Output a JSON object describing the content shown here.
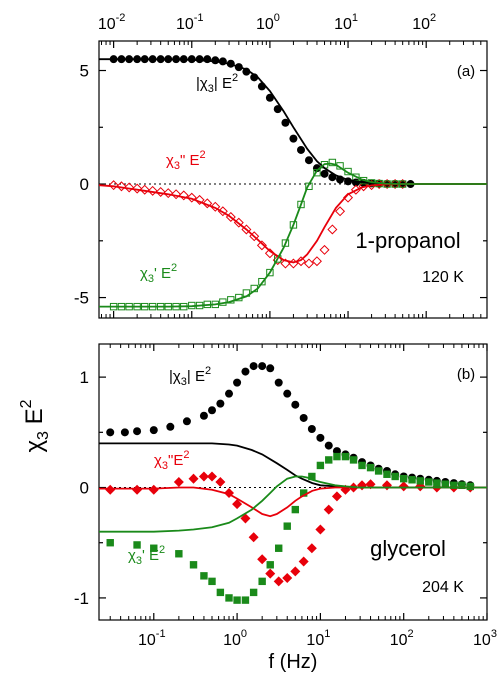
{
  "figure": {
    "shared_ylabel_base": "χ",
    "shared_ylabel_sub": "3",
    "shared_ylabel_tail": " E",
    "shared_ylabel_sup": "2",
    "colors": {
      "black": "#000000",
      "red": "#e8000b",
      "green": "#1a8a1a"
    }
  },
  "chart_data": [
    {
      "panel": "(a)",
      "type": "scatter",
      "xscale": "log",
      "xlim": [
        0.0065,
        600
      ],
      "ylim": [
        -5.9,
        6.3
      ],
      "x_ticks": [
        "10",
        "10",
        "10",
        "10",
        "10"
      ],
      "x_tick_exponents": [
        "-2",
        "-1",
        "0",
        "1",
        "2"
      ],
      "x_tick_values": [
        0.01,
        0.1,
        1,
        10,
        100
      ],
      "y_ticks": [
        "-5",
        "0",
        "5"
      ],
      "y_tick_values": [
        -5,
        0,
        5
      ],
      "zero_line": "dotted",
      "tick_axis_position": "top",
      "sample": "1-propanol",
      "temperature": "120 K",
      "labels": {
        "abs": {
          "pre": "|χ",
          "sub": "3",
          "mid": "| E",
          "sup": "2"
        },
        "imag": {
          "pre": "χ",
          "sub": "3",
          "mid": "\" E",
          "sup": "2"
        },
        "real": {
          "pre": "χ",
          "sub": "3",
          "mid": "' E",
          "sup": "2"
        }
      },
      "series": [
        {
          "label": "|χ3| E²",
          "color": "black",
          "marker": "circle-filled",
          "x": [
            0.01,
            0.0126,
            0.0158,
            0.02,
            0.025,
            0.0316,
            0.04,
            0.05,
            0.063,
            0.079,
            0.1,
            0.126,
            0.158,
            0.2,
            0.25,
            0.316,
            0.4,
            0.5,
            0.63,
            0.79,
            1.0,
            1.26,
            1.58,
            2.0,
            2.5,
            3.16,
            4.0,
            5.0,
            6.3,
            7.9,
            10,
            12.6,
            15.8,
            20,
            25,
            31.6,
            40,
            50,
            63
          ],
          "y": [
            5.5,
            5.5,
            5.5,
            5.5,
            5.5,
            5.5,
            5.5,
            5.5,
            5.5,
            5.5,
            5.5,
            5.5,
            5.5,
            5.45,
            5.4,
            5.3,
            5.15,
            4.95,
            4.7,
            4.3,
            3.8,
            3.3,
            2.7,
            2.0,
            1.5,
            1.05,
            0.7,
            0.45,
            0.3,
            0.2,
            0.12,
            0.07,
            0.05,
            0.03,
            0.02,
            0.01,
            0.01,
            0.0,
            0.0
          ]
        },
        {
          "label": "χ3\" E²",
          "color": "red",
          "marker": "diamond-open",
          "x": [
            0.01,
            0.0126,
            0.0158,
            0.02,
            0.025,
            0.0316,
            0.04,
            0.05,
            0.063,
            0.079,
            0.1,
            0.126,
            0.158,
            0.2,
            0.25,
            0.316,
            0.4,
            0.5,
            0.63,
            0.79,
            1.0,
            1.26,
            1.58,
            2.0,
            2.5,
            3.16,
            4.0,
            5.0,
            6.3,
            7.9,
            10,
            12.6,
            15.8,
            20,
            25,
            31.6,
            40,
            50
          ],
          "y": [
            -0.05,
            -0.1,
            -0.15,
            -0.2,
            -0.25,
            -0.3,
            -0.35,
            -0.4,
            -0.45,
            -0.5,
            -0.6,
            -0.7,
            -0.85,
            -1.0,
            -1.2,
            -1.45,
            -1.7,
            -2.0,
            -2.3,
            -2.7,
            -3.05,
            -3.35,
            -3.5,
            -3.5,
            -3.4,
            -3.5,
            -3.4,
            -2.9,
            -2.0,
            -1.2,
            -0.6,
            -0.25,
            -0.1,
            -0.05,
            0.0,
            0.0,
            0.0,
            0.0
          ]
        },
        {
          "label": "χ3' E²",
          "color": "green",
          "marker": "square-open",
          "x": [
            0.01,
            0.0126,
            0.0158,
            0.02,
            0.025,
            0.0316,
            0.04,
            0.05,
            0.063,
            0.079,
            0.1,
            0.126,
            0.158,
            0.2,
            0.25,
            0.316,
            0.4,
            0.5,
            0.63,
            0.79,
            1.0,
            1.26,
            1.58,
            2.0,
            2.5,
            3.16,
            4.0,
            5.0,
            6.3,
            7.9,
            10,
            12.6,
            15.8,
            20,
            25,
            31.6,
            40,
            50
          ],
          "y": [
            -5.4,
            -5.4,
            -5.4,
            -5.4,
            -5.4,
            -5.4,
            -5.4,
            -5.4,
            -5.4,
            -5.4,
            -5.35,
            -5.35,
            -5.3,
            -5.3,
            -5.2,
            -5.1,
            -5.0,
            -4.8,
            -4.6,
            -4.3,
            -3.9,
            -3.3,
            -2.6,
            -1.8,
            -0.9,
            -0.1,
            0.5,
            0.85,
            0.95,
            0.8,
            0.55,
            0.3,
            0.15,
            0.05,
            0.02,
            0.0,
            0.0,
            0.0
          ]
        },
        {
          "label": "|χ3| E² fit",
          "color": "black",
          "style": "line",
          "x": [
            0.0065,
            0.01,
            0.02,
            0.05,
            0.1,
            0.2,
            0.3,
            0.5,
            0.7,
            1.0,
            1.5,
            2.0,
            3.0,
            4.0,
            5.0,
            7.0,
            10,
            15,
            20,
            30,
            50,
            100,
            600
          ],
          "y": [
            5.5,
            5.5,
            5.5,
            5.49,
            5.47,
            5.4,
            5.3,
            5.05,
            4.7,
            4.1,
            3.2,
            2.5,
            1.55,
            1.0,
            0.7,
            0.38,
            0.18,
            0.08,
            0.04,
            0.02,
            0.0,
            0.0,
            0.0
          ]
        },
        {
          "label": "χ3\" E² fit",
          "color": "red",
          "style": "line",
          "x": [
            0.0065,
            0.01,
            0.02,
            0.05,
            0.1,
            0.2,
            0.3,
            0.5,
            0.7,
            1.0,
            1.5,
            2.0,
            2.5,
            3.0,
            4.0,
            5.0,
            7.0,
            10,
            15,
            20,
            30,
            50,
            100,
            600
          ],
          "y": [
            -0.05,
            -0.1,
            -0.25,
            -0.45,
            -0.65,
            -1.05,
            -1.4,
            -2.0,
            -2.45,
            -2.95,
            -3.35,
            -3.45,
            -3.35,
            -3.1,
            -2.5,
            -1.9,
            -1.05,
            -0.45,
            -0.15,
            -0.06,
            -0.02,
            0.0,
            0.0,
            0.0
          ]
        },
        {
          "label": "χ3' E² fit",
          "color": "green",
          "style": "line",
          "x": [
            0.0065,
            0.01,
            0.05,
            0.1,
            0.2,
            0.3,
            0.5,
            0.7,
            1.0,
            1.5,
            2.0,
            2.5,
            3.0,
            4.0,
            5.0,
            6.0,
            7.0,
            8.0,
            10,
            15,
            20,
            30,
            50,
            100,
            600
          ],
          "y": [
            -5.4,
            -5.4,
            -5.4,
            -5.38,
            -5.3,
            -5.2,
            -4.95,
            -4.6,
            -3.9,
            -2.8,
            -1.8,
            -0.9,
            -0.15,
            0.6,
            0.88,
            0.9,
            0.85,
            0.72,
            0.5,
            0.2,
            0.08,
            0.02,
            0.0,
            0.0,
            0.0
          ]
        }
      ]
    },
    {
      "panel": "(b)",
      "type": "scatter",
      "xscale": "log",
      "xlim": [
        0.022,
        1000
      ],
      "ylim": [
        -1.2,
        1.3
      ],
      "xlabel": "f (Hz)",
      "x_ticks": [
        "10",
        "10",
        "10",
        "10",
        "10"
      ],
      "x_tick_exponents": [
        "-1",
        "0",
        "1",
        "2",
        "3"
      ],
      "x_tick_values": [
        0.1,
        1,
        10,
        100,
        1000
      ],
      "y_ticks": [
        "-1",
        "0",
        "1"
      ],
      "y_tick_values": [
        -1,
        0,
        1
      ],
      "zero_line": "dotted",
      "sample": "glycerol",
      "temperature": "204 K",
      "labels": {
        "abs": {
          "pre": "|χ",
          "sub": "3",
          "mid": "| E",
          "sup": "2"
        },
        "imag": {
          "pre": "χ",
          "sub": "3",
          "mid": "\"E",
          "sup": "2"
        },
        "real": {
          "pre": "χ",
          "sub": "3",
          "mid": "' E",
          "sup": "2"
        }
      },
      "series": [
        {
          "label": "|χ3| E²",
          "color": "black",
          "marker": "circle-filled",
          "x": [
            0.03,
            0.045,
            0.063,
            0.1,
            0.158,
            0.25,
            0.4,
            0.5,
            0.63,
            0.8,
            1.0,
            1.26,
            1.58,
            2.0,
            2.5,
            3.16,
            4.0,
            5.0,
            6.3,
            7.9,
            10,
            12.6,
            15.8,
            20,
            25,
            31.6,
            40,
            50,
            63,
            79,
            100,
            126,
            158,
            200,
            250,
            316,
            400,
            500,
            630
          ],
          "y": [
            0.5,
            0.5,
            0.51,
            0.52,
            0.55,
            0.6,
            0.65,
            0.7,
            0.76,
            0.85,
            0.95,
            1.05,
            1.1,
            1.1,
            1.08,
            0.95,
            0.85,
            0.75,
            0.63,
            0.53,
            0.45,
            0.38,
            0.33,
            0.3,
            0.27,
            0.23,
            0.2,
            0.17,
            0.15,
            0.12,
            0.1,
            0.09,
            0.08,
            0.07,
            0.06,
            0.05,
            0.04,
            0.03,
            0.02
          ]
        },
        {
          "label": "χ3\"E²",
          "color": "red",
          "marker": "diamond-filled",
          "x": [
            0.03,
            0.063,
            0.1,
            0.2,
            0.3,
            0.4,
            0.5,
            0.63,
            0.8,
            1.0,
            1.26,
            1.58,
            2.0,
            2.5,
            3.16,
            4.0,
            5.0,
            6.3,
            7.9,
            10,
            12.6,
            15.8,
            20,
            25,
            31.6,
            40,
            63,
            100,
            158,
            250,
            400,
            630
          ],
          "y": [
            -0.02,
            -0.02,
            -0.02,
            0.05,
            0.08,
            0.1,
            0.1,
            0.05,
            -0.05,
            -0.15,
            -0.28,
            -0.45,
            -0.65,
            -0.78,
            -0.85,
            -0.82,
            -0.76,
            -0.67,
            -0.55,
            -0.38,
            -0.2,
            -0.08,
            -0.02,
            0.0,
            0.02,
            0.03,
            0.02,
            0.01,
            0.01,
            0.0,
            0.0,
            0.0
          ]
        },
        {
          "label": "χ3' E²",
          "color": "green",
          "marker": "square-filled",
          "x": [
            0.03,
            0.063,
            0.1,
            0.2,
            0.3,
            0.4,
            0.5,
            0.63,
            0.8,
            1.0,
            1.26,
            1.58,
            2.0,
            2.5,
            3.16,
            4.0,
            5.0,
            6.3,
            7.9,
            10,
            12.6,
            15.8,
            20,
            25,
            31.6,
            40,
            50,
            63,
            79,
            100,
            126,
            158,
            200,
            250,
            316,
            400,
            500,
            630
          ],
          "y": [
            -0.5,
            -0.52,
            -0.55,
            -0.6,
            -0.7,
            -0.8,
            -0.85,
            -0.95,
            -1.0,
            -1.02,
            -1.02,
            -0.95,
            -0.85,
            -0.7,
            -0.55,
            -0.35,
            -0.2,
            -0.05,
            0.1,
            0.2,
            0.25,
            0.28,
            0.28,
            0.25,
            0.2,
            0.18,
            0.15,
            0.12,
            0.1,
            0.08,
            0.07,
            0.06,
            0.05,
            0.04,
            0.03,
            0.02,
            0.02,
            0.01
          ]
        },
        {
          "label": "|χ3| E² fit",
          "color": "black",
          "style": "line",
          "x": [
            0.022,
            0.05,
            0.1,
            0.2,
            0.5,
            0.8,
            1.0,
            1.5,
            2.0,
            3.0,
            4.0,
            5.0,
            6.0,
            8.0,
            10,
            15,
            20,
            30,
            50,
            100,
            1000
          ],
          "y": [
            0.4,
            0.4,
            0.4,
            0.4,
            0.4,
            0.39,
            0.38,
            0.34,
            0.3,
            0.22,
            0.16,
            0.11,
            0.08,
            0.04,
            0.02,
            0.01,
            0.0,
            0.0,
            0.0,
            0.0,
            0.0
          ]
        },
        {
          "label": "χ3\"E² fit",
          "color": "red",
          "style": "line",
          "x": [
            0.022,
            0.05,
            0.1,
            0.2,
            0.3,
            0.5,
            0.8,
            1.0,
            1.5,
            2.0,
            2.5,
            3.0,
            4.0,
            5.0,
            6.0,
            8.0,
            10,
            15,
            20,
            30,
            50,
            100,
            1000
          ],
          "y": [
            -0.01,
            -0.01,
            -0.01,
            0.0,
            0.0,
            -0.02,
            -0.06,
            -0.1,
            -0.18,
            -0.24,
            -0.26,
            -0.24,
            -0.18,
            -0.12,
            -0.08,
            -0.03,
            -0.01,
            0.0,
            0.0,
            0.0,
            0.0,
            0.0,
            0.0
          ]
        },
        {
          "label": "χ3' E² fit",
          "color": "green",
          "style": "line",
          "x": [
            0.022,
            0.05,
            0.1,
            0.2,
            0.3,
            0.5,
            0.8,
            1.0,
            1.5,
            2.0,
            2.5,
            3.0,
            4.0,
            5.0,
            6.0,
            7.0,
            8.0,
            10,
            15,
            20,
            30,
            50,
            100,
            1000
          ],
          "y": [
            -0.4,
            -0.4,
            -0.4,
            -0.39,
            -0.38,
            -0.36,
            -0.32,
            -0.28,
            -0.2,
            -0.12,
            -0.05,
            0.01,
            0.08,
            0.1,
            0.1,
            0.09,
            0.07,
            0.05,
            0.02,
            0.01,
            0.0,
            0.0,
            0.0,
            0.0
          ]
        }
      ]
    }
  ]
}
